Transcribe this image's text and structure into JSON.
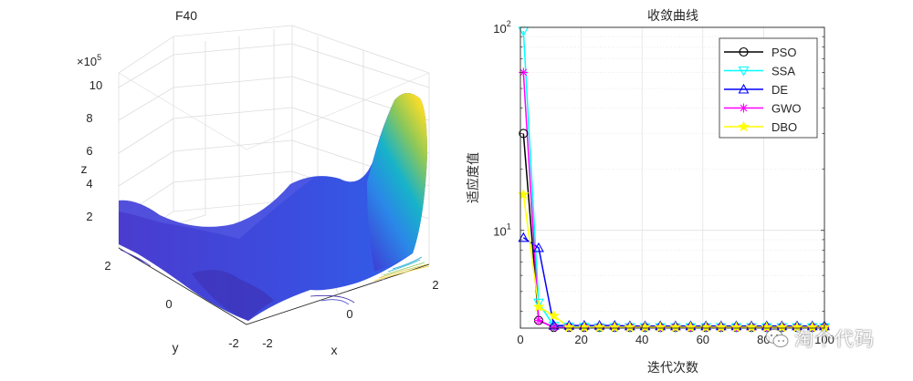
{
  "chart_data": [
    {
      "type": "surface3d",
      "title": "F40",
      "xlabel": "x",
      "ylabel": "y",
      "zlabel": "z",
      "z_exponent_label": "×10",
      "z_exponent_power": "5",
      "x_ticks": [
        "-2",
        "0",
        "2"
      ],
      "y_ticks": [
        "-2",
        "0",
        "2"
      ],
      "z_ticks": [
        "2",
        "4",
        "6",
        "8",
        "10"
      ],
      "xlim": [
        -2,
        2
      ],
      "ylim": [
        -2,
        2
      ],
      "zlim": [
        0,
        10
      ],
      "colormap": "parula",
      "colors": [
        "#3e26a8",
        "#2e5ef5",
        "#19a7d4",
        "#3ac08e",
        "#c5c12f",
        "#f9d92a"
      ]
    },
    {
      "type": "line",
      "title": "收敛曲线",
      "xlabel": "迭代次数",
      "ylabel": "适应度值",
      "yscale": "log",
      "xlim": [
        0,
        100
      ],
      "ylim": [
        3.3,
        100
      ],
      "x_ticks": [
        "0",
        "20",
        "40",
        "60",
        "80",
        "100"
      ],
      "y_ticks": [
        {
          "base": "10",
          "power": "1",
          "value": 10
        },
        {
          "base": "10",
          "power": "2",
          "value": 100
        }
      ],
      "x": [
        1,
        6,
        11,
        16,
        21,
        26,
        31,
        36,
        41,
        46,
        51,
        56,
        61,
        66,
        71,
        76,
        81,
        86,
        91,
        96,
        100
      ],
      "series": [
        {
          "name": "PSO",
          "color": "#000000",
          "marker": "circle",
          "values": [
            30,
            3.6,
            3.33,
            3.33,
            3.33,
            3.33,
            3.33,
            3.33,
            3.33,
            3.33,
            3.33,
            3.33,
            3.33,
            3.33,
            3.33,
            3.33,
            3.33,
            3.33,
            3.33,
            3.33,
            3.33
          ]
        },
        {
          "name": "SSA",
          "color": "#00ffff",
          "marker": "triangle-down",
          "values": [
            96,
            4.4,
            3.38,
            3.35,
            3.34,
            3.33,
            3.33,
            3.33,
            3.33,
            3.33,
            3.33,
            3.33,
            3.33,
            3.33,
            3.33,
            3.33,
            3.33,
            3.33,
            3.33,
            3.33,
            3.33
          ]
        },
        {
          "name": "DE",
          "color": "#0000ff",
          "marker": "triangle-up",
          "values": [
            9.2,
            8.2,
            3.4,
            3.4,
            3.4,
            3.4,
            3.4,
            3.38,
            3.38,
            3.38,
            3.38,
            3.38,
            3.38,
            3.38,
            3.38,
            3.38,
            3.38,
            3.38,
            3.38,
            3.38,
            3.38
          ]
        },
        {
          "name": "GWO",
          "color": "#ff00ff",
          "marker": "asterisk",
          "values": [
            60,
            3.6,
            3.33,
            3.33,
            3.33,
            3.33,
            3.33,
            3.33,
            3.33,
            3.33,
            3.33,
            3.33,
            3.33,
            3.33,
            3.33,
            3.33,
            3.33,
            3.33,
            3.33,
            3.33,
            3.33
          ]
        },
        {
          "name": "DBO",
          "color": "#ffff00",
          "marker": "pentagram",
          "values": [
            15,
            4.2,
            3.8,
            3.33,
            3.33,
            3.33,
            3.33,
            3.33,
            3.33,
            3.33,
            3.33,
            3.33,
            3.33,
            3.33,
            3.33,
            3.33,
            3.33,
            3.33,
            3.33,
            3.33,
            3.33
          ]
        }
      ],
      "legend_position": "top-right",
      "grid": true
    }
  ],
  "watermark": {
    "text": "淘个代码",
    "icon": "wechat-icon"
  }
}
